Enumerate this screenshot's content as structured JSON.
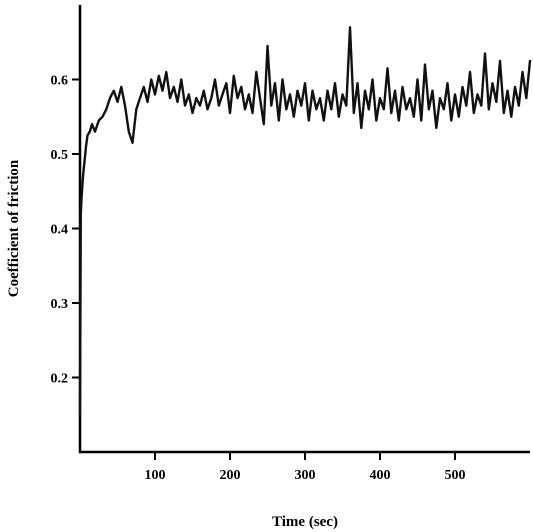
{
  "chart_data": {
    "type": "line",
    "title": "",
    "xlabel": "Time (sec)",
    "ylabel": "Coefficient of friction",
    "xlim": [
      0,
      600
    ],
    "ylim": [
      0.1,
      0.7
    ],
    "xticks": [
      100,
      200,
      300,
      400,
      500
    ],
    "yticks": [
      0.2,
      0.3,
      0.4,
      0.5,
      0.6
    ],
    "xtick_labels": [
      "100",
      "200",
      "300",
      "400",
      "500"
    ],
    "ytick_labels": [
      "0.2",
      "0.3",
      "0.4",
      "0.5",
      "0.6"
    ],
    "grid": false,
    "legend": "none",
    "line_color": "#111111",
    "series": [
      {
        "x": [
          0,
          1,
          2,
          4,
          6,
          8,
          10,
          13,
          16,
          20,
          25,
          30,
          35,
          40,
          45,
          50,
          55,
          60,
          65,
          70,
          75,
          80,
          85,
          90,
          95,
          100,
          105,
          110,
          115,
          120,
          125,
          130,
          135,
          140,
          145,
          150,
          155,
          160,
          165,
          170,
          175,
          180,
          185,
          190,
          195,
          200,
          205,
          210,
          215,
          220,
          225,
          230,
          235,
          240,
          245,
          250,
          255,
          260,
          265,
          270,
          275,
          280,
          285,
          290,
          295,
          300,
          305,
          310,
          315,
          320,
          325,
          330,
          335,
          340,
          345,
          350,
          355,
          360,
          365,
          370,
          375,
          380,
          385,
          390,
          395,
          400,
          405,
          410,
          415,
          420,
          425,
          430,
          435,
          440,
          445,
          450,
          455,
          460,
          465,
          470,
          475,
          480,
          485,
          490,
          495,
          500,
          505,
          510,
          515,
          520,
          525,
          530,
          535,
          540,
          545,
          550,
          555,
          560,
          565,
          570,
          575,
          580,
          585,
          590,
          595,
          600
        ],
        "y": [
          0.15,
          0.42,
          0.44,
          0.47,
          0.49,
          0.51,
          0.525,
          0.53,
          0.54,
          0.53,
          0.545,
          0.55,
          0.56,
          0.575,
          0.585,
          0.57,
          0.59,
          0.565,
          0.53,
          0.515,
          0.56,
          0.575,
          0.59,
          0.57,
          0.6,
          0.58,
          0.605,
          0.585,
          0.61,
          0.575,
          0.59,
          0.57,
          0.6,
          0.565,
          0.58,
          0.555,
          0.575,
          0.565,
          0.585,
          0.56,
          0.575,
          0.6,
          0.565,
          0.58,
          0.595,
          0.555,
          0.605,
          0.575,
          0.59,
          0.56,
          0.58,
          0.555,
          0.61,
          0.575,
          0.54,
          0.645,
          0.565,
          0.595,
          0.545,
          0.6,
          0.56,
          0.58,
          0.55,
          0.585,
          0.565,
          0.595,
          0.545,
          0.585,
          0.56,
          0.575,
          0.545,
          0.585,
          0.56,
          0.595,
          0.55,
          0.58,
          0.565,
          0.67,
          0.555,
          0.595,
          0.535,
          0.585,
          0.56,
          0.6,
          0.545,
          0.575,
          0.56,
          0.615,
          0.555,
          0.585,
          0.545,
          0.59,
          0.56,
          0.575,
          0.55,
          0.6,
          0.545,
          0.62,
          0.56,
          0.585,
          0.535,
          0.575,
          0.56,
          0.595,
          0.545,
          0.58,
          0.55,
          0.59,
          0.565,
          0.61,
          0.555,
          0.58,
          0.565,
          0.635,
          0.56,
          0.595,
          0.57,
          0.625,
          0.555,
          0.585,
          0.55,
          0.59,
          0.565,
          0.61,
          0.575,
          0.625
        ]
      }
    ]
  }
}
